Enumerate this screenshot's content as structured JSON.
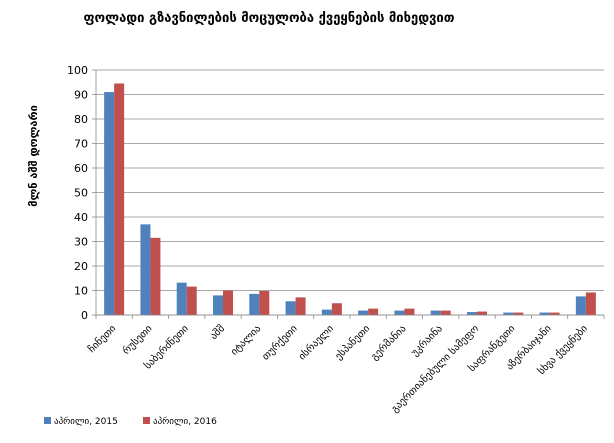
{
  "chart_data": {
    "type": "bar",
    "title": "ფოლადი გზავნილების მოცულობა ქვეყნების მიხედვით",
    "xlabel": "",
    "ylabel": "მლნ აშშ დოლარი",
    "ylim": [
      0,
      100
    ],
    "yticks": [
      0,
      10,
      20,
      30,
      40,
      50,
      60,
      70,
      80,
      90,
      100
    ],
    "grid": true,
    "legend_position": "bottom-left",
    "categories": [
      "ჩინეთი",
      "რუსეთი",
      "საბერძნეთი",
      "აშშ",
      "იტალია",
      "თურქეთი",
      "ისრაელი",
      "ესპანეთი",
      "გერმანია",
      "უკრაინა",
      "გაერთიანებული სამეფო",
      "საფრანგეთი",
      "აზერბაიჯანი",
      "სხვა ქვეყნები"
    ],
    "series": [
      {
        "name": "აპრილი, 2015",
        "color": "#4F81BD",
        "values": [
          91,
          37,
          13.2,
          8,
          8.6,
          5.6,
          2.2,
          1.8,
          1.8,
          1.8,
          1.2,
          1,
          1,
          7.6
        ]
      },
      {
        "name": "აპრილი, 2016",
        "color": "#C0504D",
        "values": [
          94.5,
          31.5,
          11.6,
          10,
          9.8,
          7.2,
          4.8,
          2.6,
          2.6,
          1.8,
          1.4,
          1,
          1,
          9.2
        ]
      }
    ]
  }
}
